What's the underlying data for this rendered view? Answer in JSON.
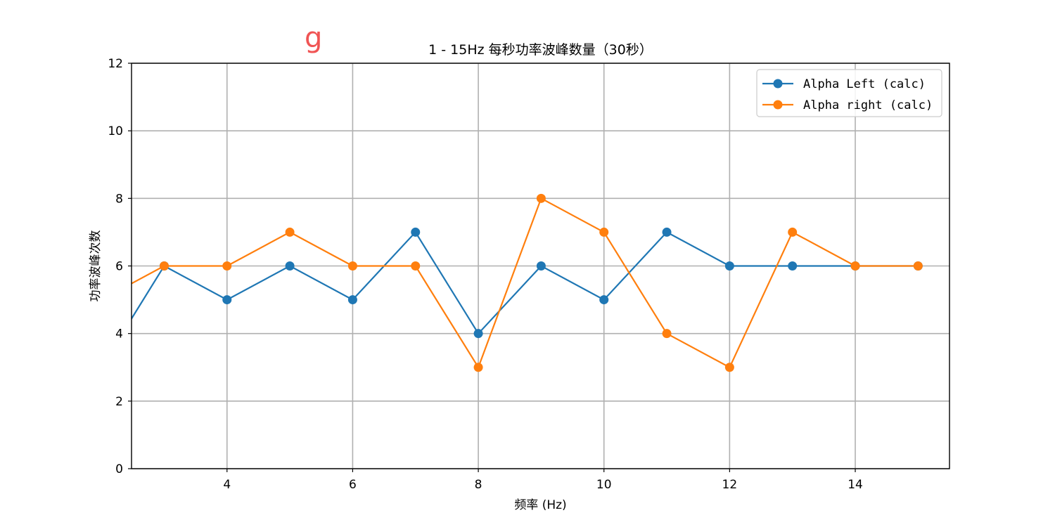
{
  "watermark": "g",
  "chart_data": {
    "type": "line",
    "title": "1 - 15Hz 每秒功率波峰数量（30秒）",
    "xlabel": "频率 (Hz)",
    "ylabel": "功率波峰次数",
    "xlim": [
      2.48,
      15.5
    ],
    "ylim": [
      0,
      12
    ],
    "xticks": [
      4,
      6,
      8,
      10,
      12,
      14
    ],
    "yticks": [
      0,
      2,
      4,
      6,
      8,
      10,
      12
    ],
    "grid": true,
    "legend_position": "upper right",
    "x": [
      2,
      3,
      4,
      5,
      6,
      7,
      8,
      9,
      10,
      11,
      12,
      13,
      14,
      15
    ],
    "series": [
      {
        "name": "Alpha Left (calc)",
        "color": "#1f77b4",
        "values": [
          3,
          6,
          5,
          6,
          5,
          7,
          4,
          6,
          5,
          7,
          6,
          6,
          6,
          6
        ]
      },
      {
        "name": "Alpha right (calc)",
        "color": "#ff7f0e",
        "values": [
          5,
          6,
          6,
          7,
          6,
          6,
          3,
          8,
          7,
          4,
          3,
          7,
          6,
          6
        ]
      }
    ]
  }
}
